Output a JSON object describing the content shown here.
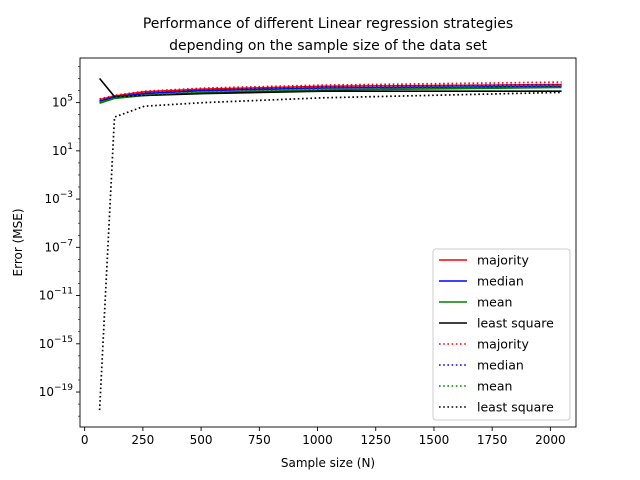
{
  "chart_data": {
    "type": "line",
    "title": "Performance of different Linear regression strategies\ndepending on the sample size of the data set",
    "xlabel": "Sample size (N)",
    "ylabel": "Error (MSE)",
    "xlim": [
      -20,
      2110
    ],
    "ylim_log10": [
      -21.9,
      8.7
    ],
    "yscale": "log",
    "x_ticks": [
      0,
      250,
      500,
      750,
      1000,
      1250,
      1500,
      1750,
      2000
    ],
    "y_ticks_exp": [
      5,
      1,
      -3,
      -7,
      -11,
      -15,
      -19
    ],
    "legend_position": "lower-right",
    "series": [
      {
        "name": "majority",
        "color": "#ff0000",
        "style": "solid",
        "x": [
          64,
          128,
          256,
          512,
          1024,
          2048
        ],
        "log10_y": [
          5.25,
          5.55,
          5.9,
          6.12,
          6.35,
          6.5
        ]
      },
      {
        "name": "median",
        "color": "#0000ff",
        "style": "solid",
        "x": [
          64,
          128,
          256,
          512,
          1024,
          2048
        ],
        "log10_y": [
          5.1,
          5.45,
          5.75,
          6.0,
          6.2,
          6.35
        ]
      },
      {
        "name": "mean",
        "color": "#008000",
        "style": "solid",
        "x": [
          64,
          128,
          256,
          512,
          1024,
          2048
        ],
        "log10_y": [
          4.95,
          5.35,
          5.6,
          5.85,
          6.05,
          6.25
        ]
      },
      {
        "name": "least square",
        "color": "#000000",
        "style": "solid",
        "x": [
          64,
          128,
          256,
          512,
          1024,
          2048
        ],
        "log10_y": [
          7.0,
          5.5,
          5.6,
          5.75,
          5.95,
          5.95
        ]
      },
      {
        "name": "majority",
        "color": "#ff0000",
        "style": "dotted",
        "x": [
          64,
          128,
          256,
          512,
          1024,
          2048
        ],
        "log10_y": [
          5.3,
          5.6,
          5.95,
          6.2,
          6.45,
          6.7
        ]
      },
      {
        "name": "median",
        "color": "#0000ff",
        "style": "dotted",
        "x": [
          64,
          128,
          256,
          512,
          1024,
          2048
        ],
        "log10_y": [
          5.15,
          5.5,
          5.8,
          6.05,
          6.3,
          6.5
        ]
      },
      {
        "name": "mean",
        "color": "#008000",
        "style": "dotted",
        "x": [
          64,
          128,
          256,
          512,
          1024,
          2048
        ],
        "log10_y": [
          5.0,
          5.4,
          5.65,
          5.9,
          6.15,
          6.35
        ]
      },
      {
        "name": "least square",
        "color": "#000000",
        "style": "dotted",
        "x": [
          64,
          128,
          256,
          512,
          1024,
          2048
        ],
        "log10_y": [
          -20.5,
          3.8,
          4.7,
          5.0,
          5.4,
          5.85
        ]
      }
    ]
  }
}
